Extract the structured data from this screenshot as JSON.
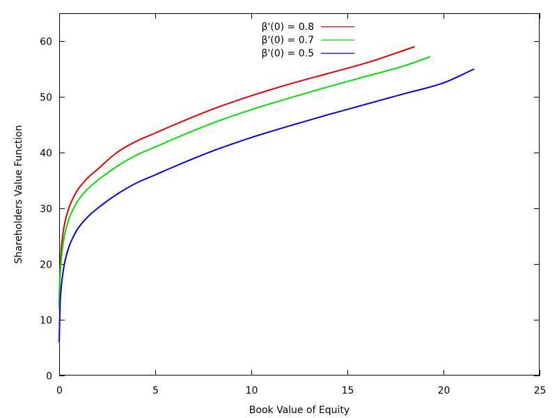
{
  "chart_data": {
    "type": "line",
    "xlabel": "Book Value of Equity",
    "ylabel": "Shareholders Value Function",
    "xlim": [
      0,
      25
    ],
    "ylim": [
      0,
      65
    ],
    "x_ticks": [
      "0",
      "5",
      "10",
      "15",
      "20",
      "25"
    ],
    "y_ticks": [
      "0",
      "10",
      "20",
      "30",
      "40",
      "50",
      "60"
    ],
    "grid": false,
    "legend_position": "top-center",
    "series": [
      {
        "name": "β'(0) = 0.8",
        "color": "#e00000",
        "x": [
          0,
          0.05,
          0.1,
          0.2,
          0.3,
          0.5,
          0.75,
          1,
          1.5,
          2,
          3,
          4,
          5,
          6,
          8,
          10,
          12,
          14,
          16,
          18.5
        ],
        "y": [
          13,
          19.5,
          22.5,
          25.5,
          27.5,
          30,
          32,
          33.5,
          35.5,
          37,
          40,
          42,
          43.5,
          45,
          47.8,
          50.2,
          52.3,
          54.2,
          56.1,
          59
        ]
      },
      {
        "name": "β'(0) = 0.7",
        "color": "#00e000",
        "x": [
          0,
          0.05,
          0.1,
          0.2,
          0.3,
          0.5,
          0.75,
          1,
          1.5,
          2,
          3,
          4,
          5,
          6,
          8,
          10,
          12,
          14,
          16,
          18,
          19.3
        ],
        "y": [
          12,
          17.5,
          20.5,
          23.5,
          25.5,
          28,
          30,
          31.5,
          33.5,
          35,
          37.5,
          39.5,
          41,
          42.5,
          45.3,
          47.7,
          49.8,
          51.8,
          53.7,
          55.6,
          57.2
        ]
      },
      {
        "name": "β'(0) = 0.5",
        "color": "#0000e0",
        "x": [
          0,
          0.05,
          0.1,
          0.2,
          0.3,
          0.5,
          0.75,
          1,
          1.5,
          2,
          3,
          4,
          5,
          6,
          8,
          10,
          12,
          14,
          16,
          18,
          20,
          21.6
        ],
        "y": [
          6,
          13,
          15.5,
          18.5,
          20.5,
          23,
          25,
          26.5,
          28.5,
          30,
          32.5,
          34.5,
          36,
          37.5,
          40.3,
          42.7,
          44.8,
          46.8,
          48.7,
          50.6,
          52.5,
          55
        ]
      }
    ]
  }
}
